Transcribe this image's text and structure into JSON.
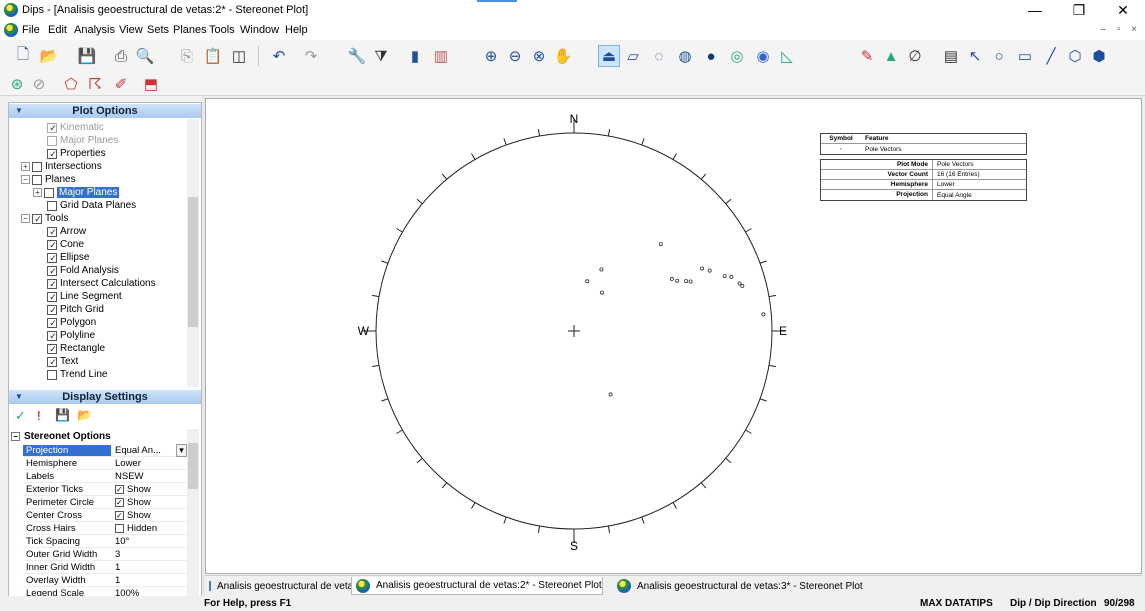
{
  "window": {
    "title": "Dips - [Analisis geoestructural de vetas:2* - Stereonet Plot]",
    "controls": [
      "—",
      "❐",
      "✕"
    ]
  },
  "menu": {
    "items": [
      "File",
      "Edit",
      "Analysis",
      "View",
      "Sets",
      "Planes",
      "Tools",
      "Window",
      "Help"
    ],
    "mdi_controls": "– ▫ ×"
  },
  "plot_options": {
    "title": "Plot Options",
    "tree": [
      {
        "label": "Kinematic",
        "checked": true,
        "dim": true
      },
      {
        "label": "Major Planes",
        "checked": false,
        "dim": true
      },
      {
        "label": "Properties",
        "checked": true,
        "dim": false
      },
      {
        "label": "Intersections",
        "checked": false,
        "dim": false
      },
      {
        "label": "Planes",
        "checked": false,
        "dim": false
      },
      {
        "label": "Major Planes",
        "checked": false,
        "dim": false,
        "selected": true
      },
      {
        "label": "Grid Data Planes",
        "checked": false,
        "dim": false
      },
      {
        "label": "Tools",
        "checked": true,
        "dim": false
      },
      {
        "label": "Arrow",
        "checked": true
      },
      {
        "label": "Cone",
        "checked": true
      },
      {
        "label": "Ellipse",
        "checked": true
      },
      {
        "label": "Fold Analysis",
        "checked": true
      },
      {
        "label": "Intersect Calculations",
        "checked": true
      },
      {
        "label": "Line Segment",
        "checked": true
      },
      {
        "label": "Pitch Grid",
        "checked": true
      },
      {
        "label": "Polygon",
        "checked": true
      },
      {
        "label": "Polyline",
        "checked": true
      },
      {
        "label": "Rectangle",
        "checked": true
      },
      {
        "label": "Text",
        "checked": true
      },
      {
        "label": "Trend Line",
        "checked": false
      }
    ]
  },
  "display_settings": {
    "title": "Display Settings",
    "section": "Stereonet Options",
    "rows": [
      {
        "key": "Projection",
        "value": "Equal An...",
        "type": "dropdown",
        "selected": true
      },
      {
        "key": "Hemisphere",
        "value": "Lower"
      },
      {
        "key": "Labels",
        "value": "NSEW"
      },
      {
        "key": "Exterior Ticks",
        "value": "Show",
        "type": "check",
        "checked": true
      },
      {
        "key": "Perimeter Circle",
        "value": "Show",
        "type": "check",
        "checked": true
      },
      {
        "key": "Center Cross",
        "value": "Show",
        "type": "check",
        "checked": true
      },
      {
        "key": "Cross Hairs",
        "value": "Hidden",
        "type": "check",
        "checked": false
      },
      {
        "key": "Tick Spacing",
        "value": "10°"
      },
      {
        "key": "Outer Grid Width",
        "value": "3"
      },
      {
        "key": "Inner Grid Width",
        "value": "1"
      },
      {
        "key": "Overlay Width",
        "value": "1"
      },
      {
        "key": "Legend Scale",
        "value": "100%"
      }
    ]
  },
  "stereonet": {
    "labels": {
      "n": "N",
      "s": "S",
      "e": "E",
      "w": "W"
    },
    "poles": [
      {
        "az": 45,
        "r": 0.62
      },
      {
        "az": 62,
        "r": 0.56
      },
      {
        "az": 64,
        "r": 0.58
      },
      {
        "az": 66,
        "r": 0.62
      },
      {
        "az": 67,
        "r": 0.64
      },
      {
        "az": 64,
        "r": 0.72
      },
      {
        "az": 66,
        "r": 0.75
      },
      {
        "az": 70,
        "r": 0.81
      },
      {
        "az": 71,
        "r": 0.84
      },
      {
        "az": 74,
        "r": 0.87
      },
      {
        "az": 75,
        "r": 0.88
      },
      {
        "az": 85,
        "r": 0.96
      },
      {
        "az": 36,
        "r": 0.24
      },
      {
        "az": 24,
        "r": 0.34
      },
      {
        "az": 15,
        "r": 0.26
      },
      {
        "az": 150,
        "r": 0.37
      }
    ]
  },
  "legend": {
    "symbol_header": "Symbol",
    "feature_header": "Feature",
    "feature": "Pole Vectors",
    "info": [
      {
        "k": "Plot Mode",
        "v": "Pole Vectors"
      },
      {
        "k": "Vector Count",
        "v": "16 (16 Entries)"
      },
      {
        "k": "Hemisphere",
        "v": "Lower"
      },
      {
        "k": "Projection",
        "v": "Equal Angle"
      }
    ]
  },
  "tabs": [
    {
      "label": "Analisis geoestructural de vetas:1*",
      "icon": "grid-icon"
    },
    {
      "label": "Analisis geoestructural de vetas:2* - Stereonet Plot",
      "icon": "globe-icon",
      "active": true
    },
    {
      "label": "Analisis geoestructural de vetas:3* - Stereonet Plot",
      "icon": "globe-icon"
    }
  ],
  "status": {
    "help": "For Help, press F1",
    "max": "MAX DATATIPS",
    "mode": "Dip / Dip Direction",
    "value": "90/298"
  }
}
